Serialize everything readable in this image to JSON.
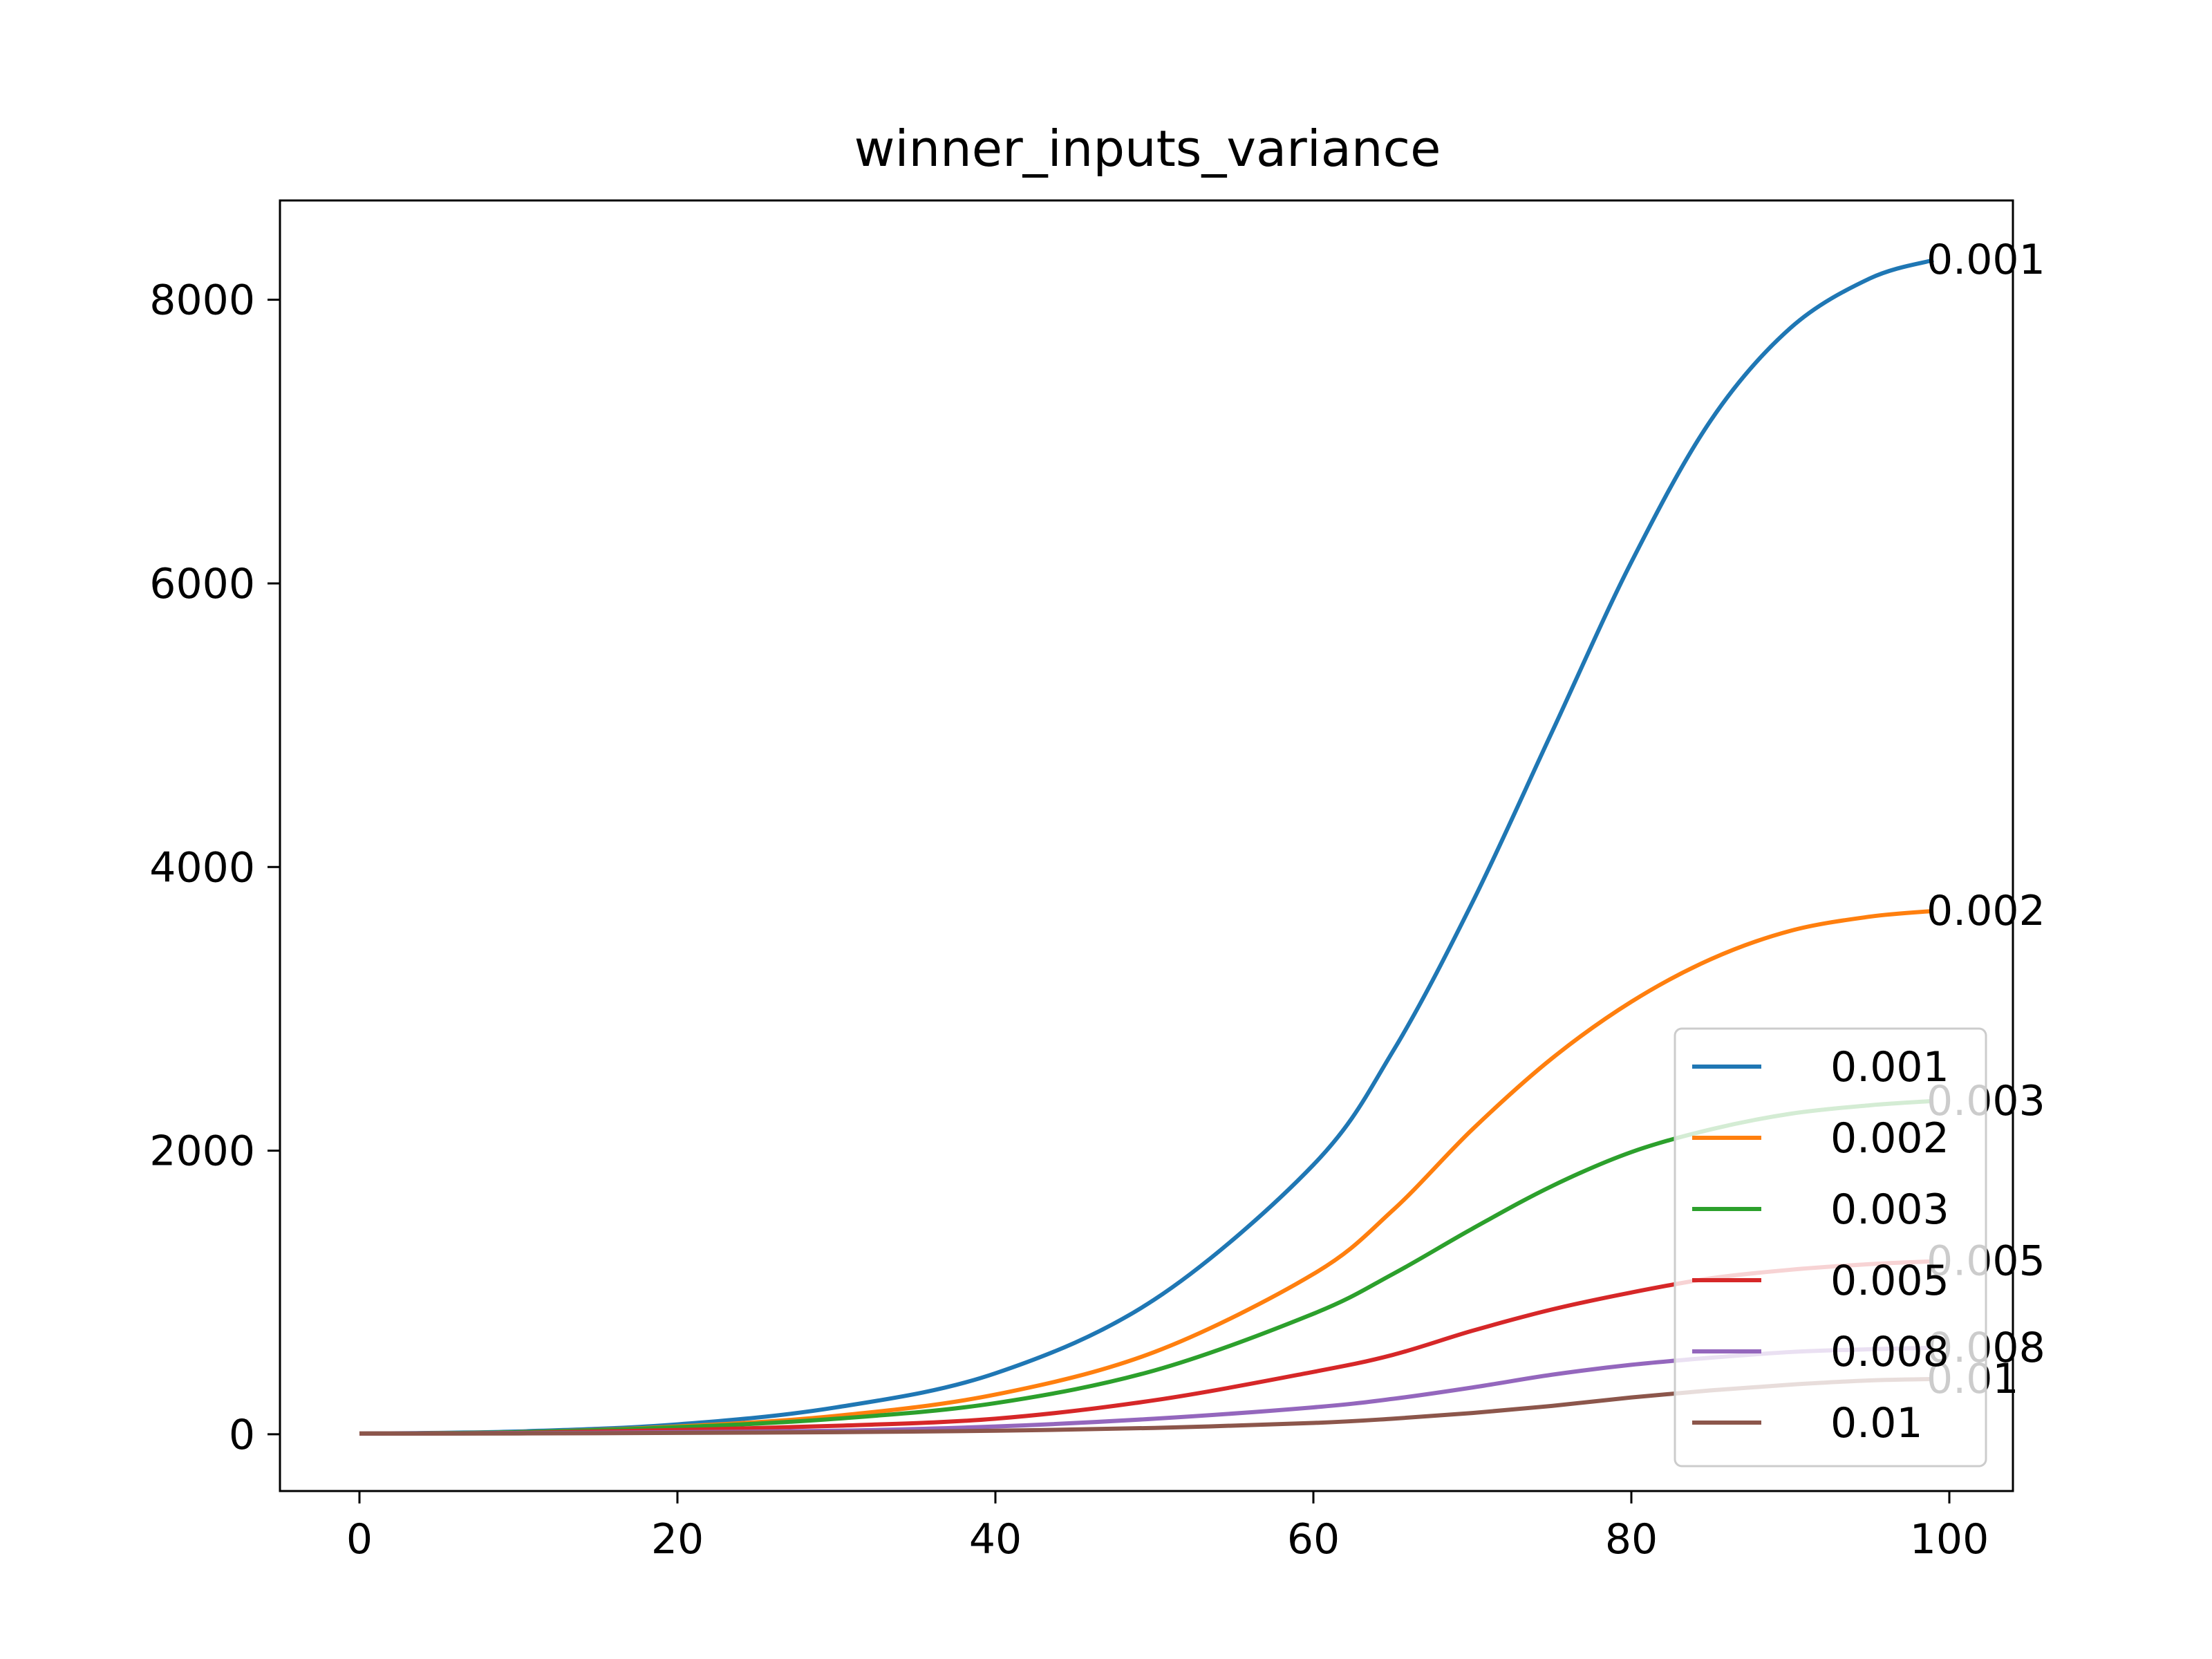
{
  "chart_data": {
    "type": "line",
    "title": "winner_inputs_variance",
    "xlabel": "",
    "ylabel": "",
    "xlim": [
      -5,
      104
    ],
    "ylim": [
      -400,
      8700
    ],
    "xticks": [
      0,
      20,
      40,
      60,
      80,
      100
    ],
    "yticks": [
      0,
      2000,
      4000,
      6000,
      8000
    ],
    "x": [
      0,
      10,
      20,
      30,
      40,
      50,
      60,
      65,
      70,
      75,
      80,
      85,
      90,
      95,
      99
    ],
    "grid": false,
    "legend_position": "lower-right",
    "series": [
      {
        "name": "0.001",
        "color": "#1f77b4",
        "end_label": "0.001",
        "values": [
          5,
          20,
          70,
          190,
          430,
          950,
          1900,
          2700,
          3750,
          4950,
          6150,
          7150,
          7800,
          8150,
          8280
        ]
      },
      {
        "name": "0.002",
        "color": "#ff7f0e",
        "end_label": "0.002",
        "values": [
          5,
          15,
          55,
          130,
          280,
          580,
          1130,
          1580,
          2150,
          2650,
          3050,
          3350,
          3550,
          3650,
          3690
        ]
      },
      {
        "name": "0.003",
        "color": "#2ca02c",
        "end_label": "0.003",
        "values": [
          5,
          15,
          50,
          110,
          220,
          450,
          850,
          1130,
          1450,
          1750,
          1990,
          2150,
          2260,
          2320,
          2350
        ]
      },
      {
        "name": "0.005",
        "color": "#d62728",
        "end_label": "0.005",
        "values": [
          5,
          10,
          30,
          60,
          110,
          240,
          440,
          560,
          730,
          880,
          1000,
          1100,
          1160,
          1200,
          1220
        ]
      },
      {
        "name": "0.008",
        "color": "#9467bd",
        "end_label": "0.008",
        "values": [
          5,
          8,
          15,
          25,
          55,
          110,
          190,
          250,
          330,
          420,
          490,
          540,
          580,
          600,
          610
        ]
      },
      {
        "name": "0.01",
        "color": "#8c564b",
        "end_label": "0.01",
        "values": [
          5,
          6,
          10,
          15,
          25,
          45,
          80,
          110,
          150,
          200,
          260,
          310,
          350,
          380,
          390
        ]
      }
    ]
  }
}
